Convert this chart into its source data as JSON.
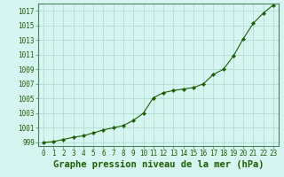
{
  "x": [
    0,
    1,
    2,
    3,
    4,
    5,
    6,
    7,
    8,
    9,
    10,
    11,
    12,
    13,
    14,
    15,
    16,
    17,
    18,
    19,
    20,
    21,
    22,
    23
  ],
  "y": [
    999.0,
    999.1,
    999.4,
    999.7,
    999.9,
    1000.3,
    1000.7,
    1001.0,
    1001.3,
    1002.0,
    1003.0,
    1005.1,
    1005.8,
    1006.1,
    1006.3,
    1006.5,
    1007.0,
    1008.3,
    1009.0,
    1010.8,
    1013.2,
    1015.3,
    1016.7,
    1017.8
  ],
  "line_color": "#1a5e00",
  "marker_color": "#1a5e00",
  "bg_color": "#d6f5f0",
  "grid_color": "#aad8cc",
  "border_color": "#4a8060",
  "title": "Graphe pression niveau de la mer (hPa)",
  "xlim": [
    -0.5,
    23.5
  ],
  "ylim": [
    998.5,
    1018.0
  ],
  "ytick_min": 999,
  "ytick_max": 1017,
  "ytick_step": 2,
  "xticks": [
    0,
    1,
    2,
    3,
    4,
    5,
    6,
    7,
    8,
    9,
    10,
    11,
    12,
    13,
    14,
    15,
    16,
    17,
    18,
    19,
    20,
    21,
    22,
    23
  ],
  "title_fontsize": 7.5,
  "tick_fontsize": 5.5,
  "line_width": 0.8,
  "marker_size": 2.2
}
